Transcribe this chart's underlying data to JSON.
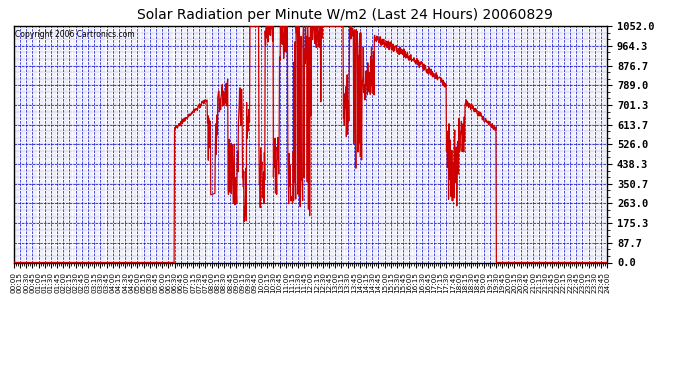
{
  "title": "Solar Radiation per Minute W/m2 (Last 24 Hours) 20060829",
  "copyright": "Copyright 2006 Cartronics.com",
  "background_color": "#FFFFFF",
  "plot_bg_color": "#FFFFFF",
  "line_color": "#CC0000",
  "grid_color": "#0000CC",
  "border_color": "#000000",
  "title_color": "#000000",
  "ymax": 1052.0,
  "ymin": 0.0,
  "yticks": [
    0.0,
    87.7,
    175.3,
    263.0,
    350.7,
    438.3,
    526.0,
    613.7,
    701.3,
    789.0,
    876.7,
    964.3,
    1052.0
  ]
}
